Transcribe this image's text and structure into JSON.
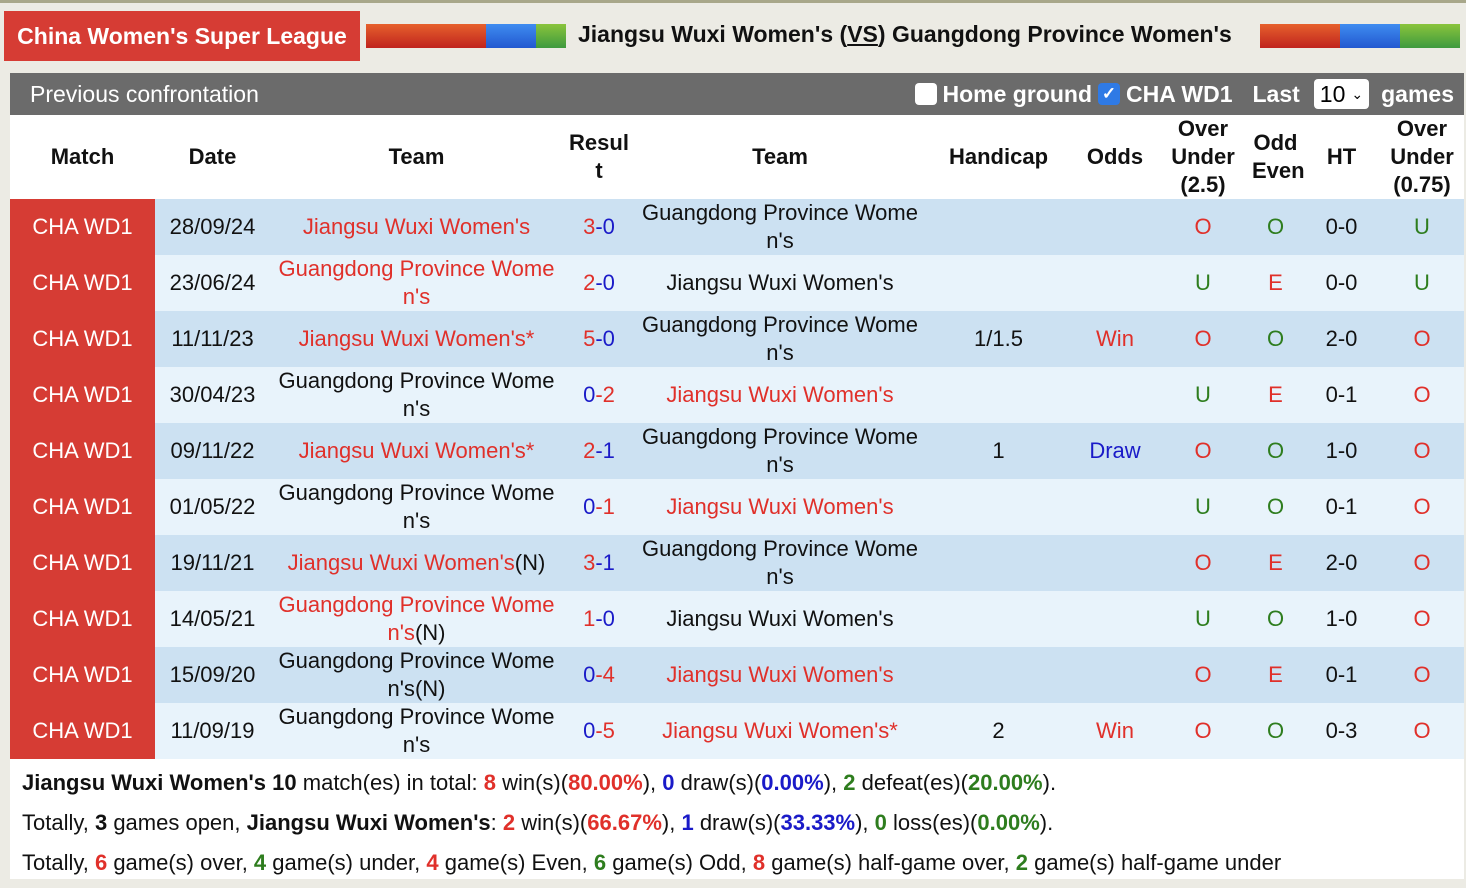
{
  "header": {
    "league": "China Women's Super League",
    "home": "Jiangsu Wuxi Women's",
    "vs": "VS",
    "away": "Guangdong Province Women's"
  },
  "panel": {
    "title": "Previous confrontation",
    "home_ground_label": "Home ground",
    "home_ground_checked": false,
    "league_filter_label": "CHA WD1",
    "league_filter_checked": true,
    "last_label": "Last",
    "last_value": "10",
    "games_label": "games"
  },
  "columns": [
    "Match",
    "Date",
    "Team",
    "Result",
    "Team",
    "Handicap",
    "Odds",
    "Over Under (2.5)",
    "Odd Even",
    "HT",
    "Over Under (0.75)"
  ],
  "colors": {
    "red": "#e0302a",
    "blue": "#1a1ac8",
    "green": "#2e7d1e",
    "league": "#d63c34"
  },
  "rows": [
    {
      "match": "CHA WD1",
      "date": "28/09/24",
      "home": "Jiangsu Wuxi Women's",
      "home_suffix": "",
      "hg": "3",
      "ag": "0",
      "winner": "home",
      "away": "Guangdong Province Women's",
      "away_suffix": "",
      "handicap": "",
      "odds": "",
      "ou": "O",
      "oe": "O",
      "ht": "0-0",
      "ou2": "U"
    },
    {
      "match": "CHA WD1",
      "date": "23/06/24",
      "home": "Guangdong Province Women's",
      "home_suffix": "",
      "hg": "2",
      "ag": "0",
      "winner": "home",
      "away": "Jiangsu Wuxi Women's",
      "away_suffix": "",
      "handicap": "",
      "odds": "",
      "ou": "U",
      "oe": "E",
      "ht": "0-0",
      "ou2": "U"
    },
    {
      "match": "CHA WD1",
      "date": "11/11/23",
      "home": "Jiangsu Wuxi Women's*",
      "home_suffix": "",
      "hg": "5",
      "ag": "0",
      "winner": "home",
      "away": "Guangdong Province Women's",
      "away_suffix": "",
      "handicap": "1/1.5",
      "odds": "Win",
      "ou": "O",
      "oe": "O",
      "ht": "2-0",
      "ou2": "O"
    },
    {
      "match": "CHA WD1",
      "date": "30/04/23",
      "home": "Guangdong Province Women's",
      "home_suffix": "",
      "hg": "0",
      "ag": "2",
      "winner": "away",
      "away": "Jiangsu Wuxi Women's",
      "away_suffix": "",
      "handicap": "",
      "odds": "",
      "ou": "U",
      "oe": "E",
      "ht": "0-1",
      "ou2": "O"
    },
    {
      "match": "CHA WD1",
      "date": "09/11/22",
      "home": "Jiangsu Wuxi Women's*",
      "home_suffix": "",
      "hg": "2",
      "ag": "1",
      "winner": "home",
      "away": "Guangdong Province Women's",
      "away_suffix": "",
      "handicap": "1",
      "odds": "Draw",
      "ou": "O",
      "oe": "O",
      "ht": "1-0",
      "ou2": "O"
    },
    {
      "match": "CHA WD1",
      "date": "01/05/22",
      "home": "Guangdong Province Women's",
      "home_suffix": "",
      "hg": "0",
      "ag": "1",
      "winner": "away",
      "away": "Jiangsu Wuxi Women's",
      "away_suffix": "",
      "handicap": "",
      "odds": "",
      "ou": "U",
      "oe": "O",
      "ht": "0-1",
      "ou2": "O"
    },
    {
      "match": "CHA WD1",
      "date": "19/11/21",
      "home": "Jiangsu Wuxi Women's",
      "home_suffix": "(N)",
      "hg": "3",
      "ag": "1",
      "winner": "home",
      "away": "Guangdong Province Women's",
      "away_suffix": "",
      "handicap": "",
      "odds": "",
      "ou": "O",
      "oe": "E",
      "ht": "2-0",
      "ou2": "O"
    },
    {
      "match": "CHA WD1",
      "date": "14/05/21",
      "home": "Guangdong Province Women's",
      "home_suffix": "(N)",
      "hg": "1",
      "ag": "0",
      "winner": "home",
      "away": "Jiangsu Wuxi Women's",
      "away_suffix": "",
      "handicap": "",
      "odds": "",
      "ou": "U",
      "oe": "O",
      "ht": "1-0",
      "ou2": "O"
    },
    {
      "match": "CHA WD1",
      "date": "15/09/20",
      "home": "Guangdong Province Women's",
      "home_suffix": "(N)",
      "hg": "0",
      "ag": "4",
      "winner": "away",
      "away": "Jiangsu Wuxi Women's",
      "away_suffix": "",
      "handicap": "",
      "odds": "",
      "ou": "O",
      "oe": "E",
      "ht": "0-1",
      "ou2": "O"
    },
    {
      "match": "CHA WD1",
      "date": "11/09/19",
      "home": "Guangdong Province Women's",
      "home_suffix": "",
      "hg": "0",
      "ag": "5",
      "winner": "away",
      "away": "Jiangsu Wuxi Women's*",
      "away_suffix": "",
      "handicap": "2",
      "odds": "Win",
      "ou": "O",
      "oe": "O",
      "ht": "0-3",
      "ou2": "O"
    }
  ],
  "summary": {
    "l1": {
      "team": "Jiangsu Wuxi Women's",
      "total": "10",
      "t1": " match(es) in total: ",
      "wins": "8",
      "t2": " win(s)(",
      "win_pct": "80.00%",
      "t3": "), ",
      "draws": "0",
      "t4": " draw(s)(",
      "draw_pct": "0.00%",
      "t5": "), ",
      "defeats": "2",
      "t6": " defeat(es)(",
      "defeat_pct": "20.00%",
      "t7": ")."
    },
    "l2": {
      "t0": "Totally, ",
      "open": "3",
      "t1": " games open, ",
      "team": "Jiangsu Wuxi Women's",
      "t2": ": ",
      "wins": "2",
      "t3": " win(s)(",
      "win_pct": "66.67%",
      "t4": "), ",
      "draws": "1",
      "t5": " draw(s)(",
      "draw_pct": "33.33%",
      "t6": "), ",
      "losses": "0",
      "t7": " loss(es)(",
      "loss_pct": "0.00%",
      "t8": ")."
    },
    "l3": {
      "t0": "Totally, ",
      "over": "6",
      "t1": " game(s) over, ",
      "under": "4",
      "t2": " game(s) under, ",
      "even": "4",
      "t3": " game(s) Even, ",
      "odd": "6",
      "t4": " game(s) Odd, ",
      "hover": "8",
      "t5": " game(s) half-game over, ",
      "hunder": "2",
      "t6": " game(s) half-game under"
    }
  }
}
